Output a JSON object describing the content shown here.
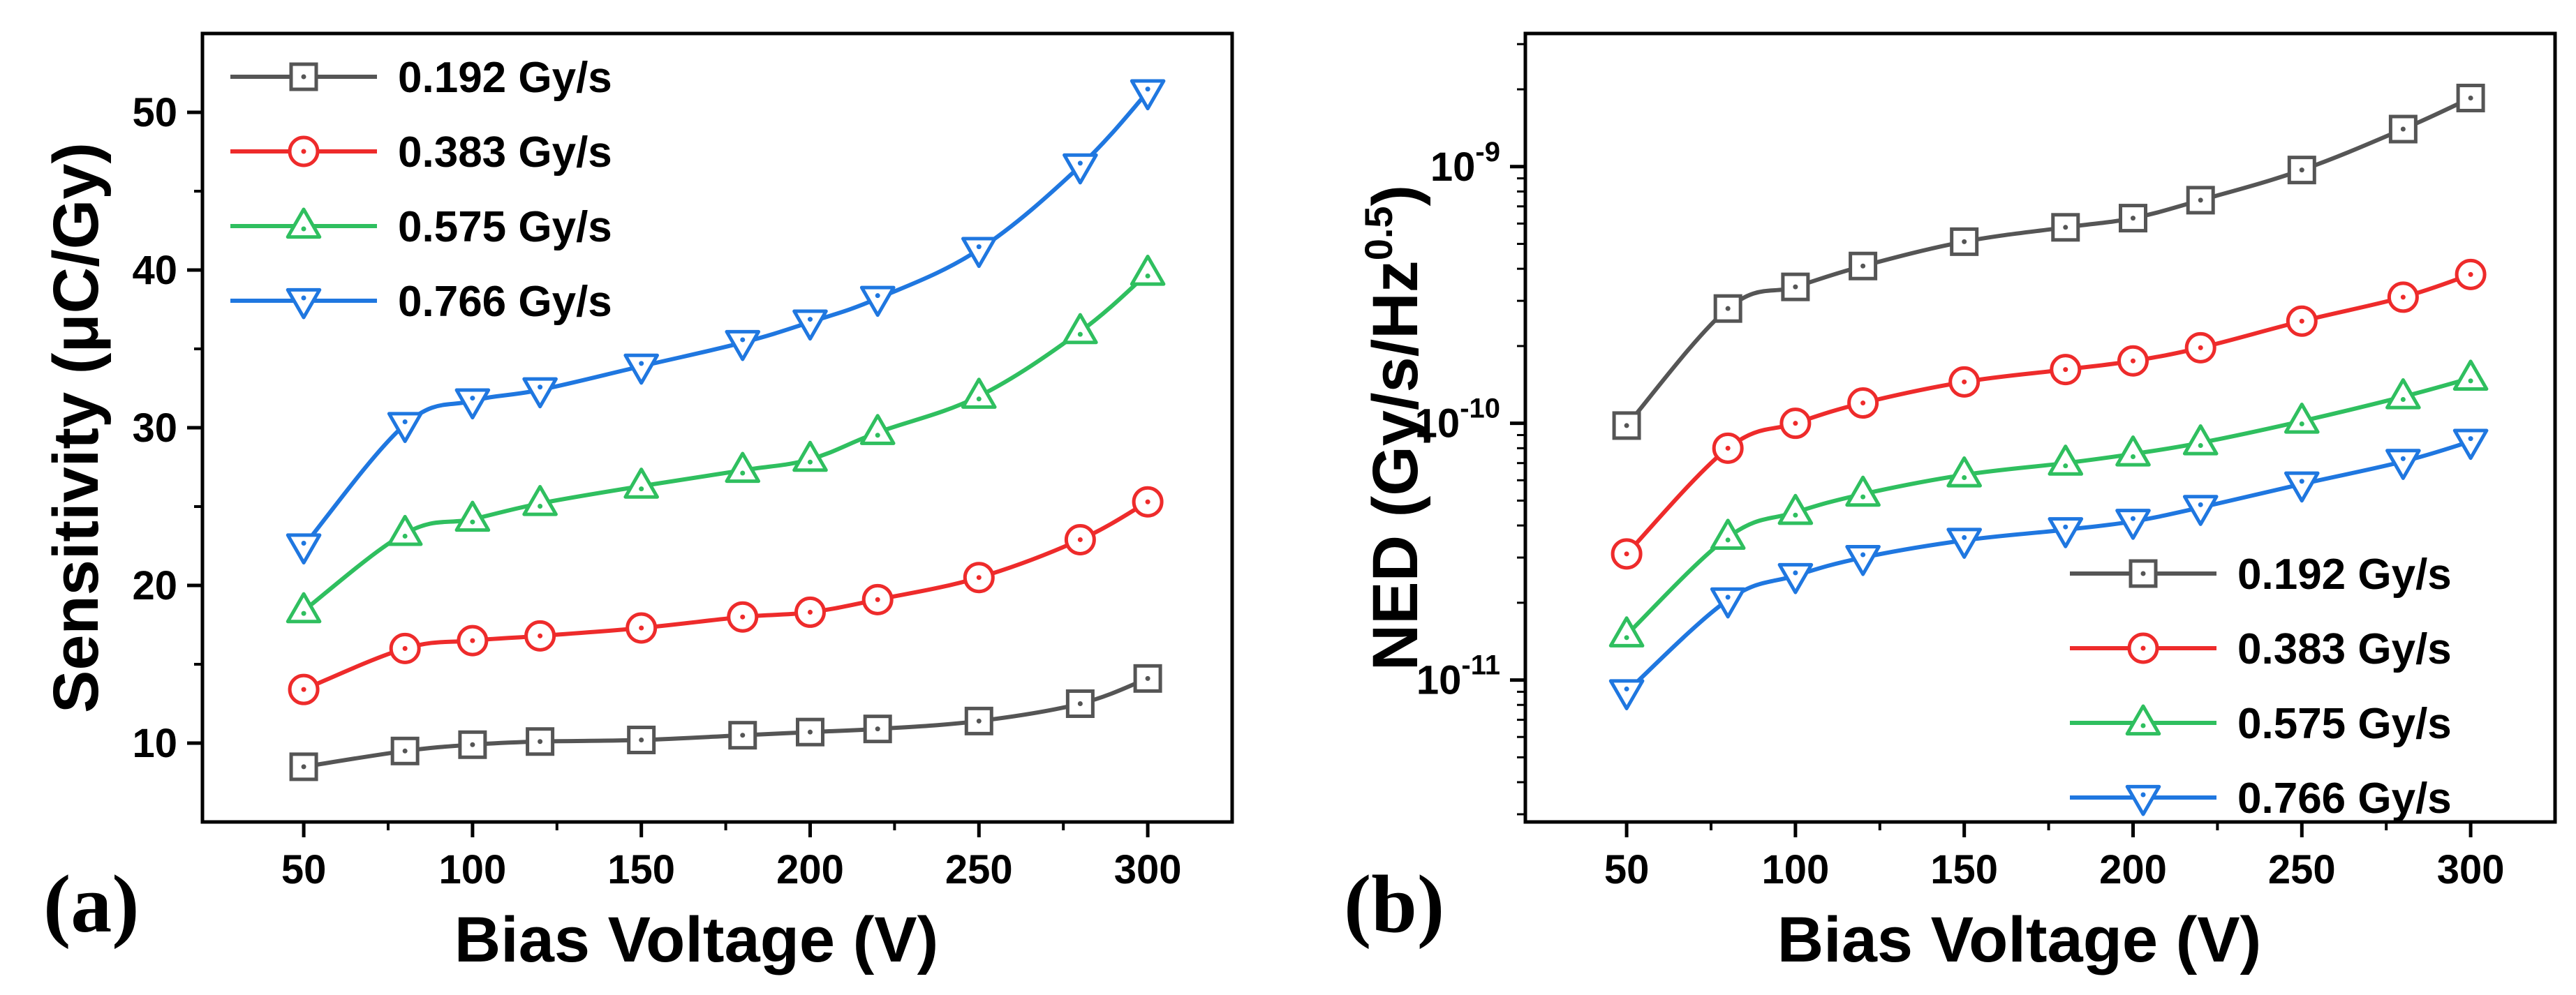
{
  "chart_data": [
    {
      "type": "line",
      "panel_label": "(a)",
      "xlabel": "Bias Voltage (V)",
      "ylabel": "Sensitivity (μC/Gy)",
      "yscale": "linear",
      "xlim": [
        20,
        325
      ],
      "ylim": [
        5,
        55
      ],
      "x_ticks": [
        50,
        100,
        150,
        200,
        250,
        300
      ],
      "x_tick_labels": [
        "50",
        "100",
        "150",
        "200",
        "250",
        "300"
      ],
      "y_ticks": [
        10,
        20,
        30,
        40,
        50
      ],
      "y_tick_labels": [
        "10",
        "20",
        "30",
        "40",
        "50"
      ],
      "x": [
        50,
        80,
        100,
        120,
        150,
        180,
        200,
        220,
        250,
        280,
        300
      ],
      "legend_position": "top-left",
      "series": [
        {
          "name": "0.192 Gy/s",
          "color": "#555555",
          "marker": "square",
          "values": [
            8.5,
            9.5,
            9.9,
            10.1,
            10.2,
            10.5,
            10.7,
            10.9,
            11.4,
            12.5,
            14.1
          ]
        },
        {
          "name": "0.383 Gy/s",
          "color": "#ee2b2b",
          "marker": "circle",
          "values": [
            13.4,
            16.0,
            16.5,
            16.8,
            17.3,
            18.0,
            18.3,
            19.1,
            20.5,
            22.9,
            25.3
          ]
        },
        {
          "name": "0.575 Gy/s",
          "color": "#2fbf5f",
          "marker": "triangle-up",
          "values": [
            18.4,
            23.3,
            24.2,
            25.2,
            26.3,
            27.3,
            28.0,
            29.7,
            32.0,
            36.1,
            39.8
          ]
        },
        {
          "name": "0.766 Gy/s",
          "color": "#1f77e0",
          "marker": "triangle-down",
          "values": [
            22.5,
            30.2,
            31.7,
            32.4,
            33.9,
            35.4,
            36.7,
            38.2,
            41.3,
            46.6,
            51.3
          ]
        }
      ]
    },
    {
      "type": "line",
      "panel_label": "(b)",
      "xlabel": "Bias Voltage (V)",
      "ylabel_main": "NED (Gy/s/Hz",
      "ylabel_sup": "0.5",
      "ylabel_end": ")",
      "yscale": "log",
      "xlim": [
        20,
        325
      ],
      "ylim": [
        2.8e-12,
        3.3e-09
      ],
      "x_ticks": [
        50,
        100,
        150,
        200,
        250,
        300
      ],
      "x_tick_labels": [
        "50",
        "100",
        "150",
        "200",
        "250",
        "300"
      ],
      "y_ticks": [
        1e-11,
        1e-10,
        1e-09
      ],
      "y_tick_labels": [
        {
          "base": "10",
          "exp": "-11"
        },
        {
          "base": "10",
          "exp": "-10"
        },
        {
          "base": "10",
          "exp": "-9"
        }
      ],
      "x": [
        50,
        80,
        100,
        120,
        150,
        180,
        200,
        220,
        250,
        280,
        300
      ],
      "legend_position": "bottom-right",
      "series": [
        {
          "name": "0.192 Gy/s",
          "color": "#555555",
          "marker": "square",
          "values": [
            9.8e-11,
            2.8e-10,
            3.4e-10,
            4.1e-10,
            5.1e-10,
            5.8e-10,
            6.3e-10,
            7.4e-10,
            9.7e-10,
            1.4e-09,
            1.85e-09
          ]
        },
        {
          "name": "0.383 Gy/s",
          "color": "#ee2b2b",
          "marker": "circle",
          "values": [
            3.1e-11,
            8e-11,
            1e-10,
            1.2e-10,
            1.45e-10,
            1.62e-10,
            1.75e-10,
            1.97e-10,
            2.5e-10,
            3.1e-10,
            3.8e-10
          ]
        },
        {
          "name": "0.575 Gy/s",
          "color": "#2fbf5f",
          "marker": "triangle-up",
          "values": [
            1.5e-11,
            3.6e-11,
            4.5e-11,
            5.3e-11,
            6.3e-11,
            7e-11,
            7.6e-11,
            8.4e-11,
            1.02e-10,
            1.27e-10,
            1.5e-10
          ]
        },
        {
          "name": "0.766 Gy/s",
          "color": "#1f77e0",
          "marker": "triangle-down",
          "values": [
            9e-12,
            2.05e-11,
            2.55e-11,
            3e-11,
            3.5e-11,
            3.85e-11,
            4.15e-11,
            4.7e-11,
            5.8e-11,
            7.1e-11,
            8.5e-11
          ]
        }
      ]
    }
  ]
}
